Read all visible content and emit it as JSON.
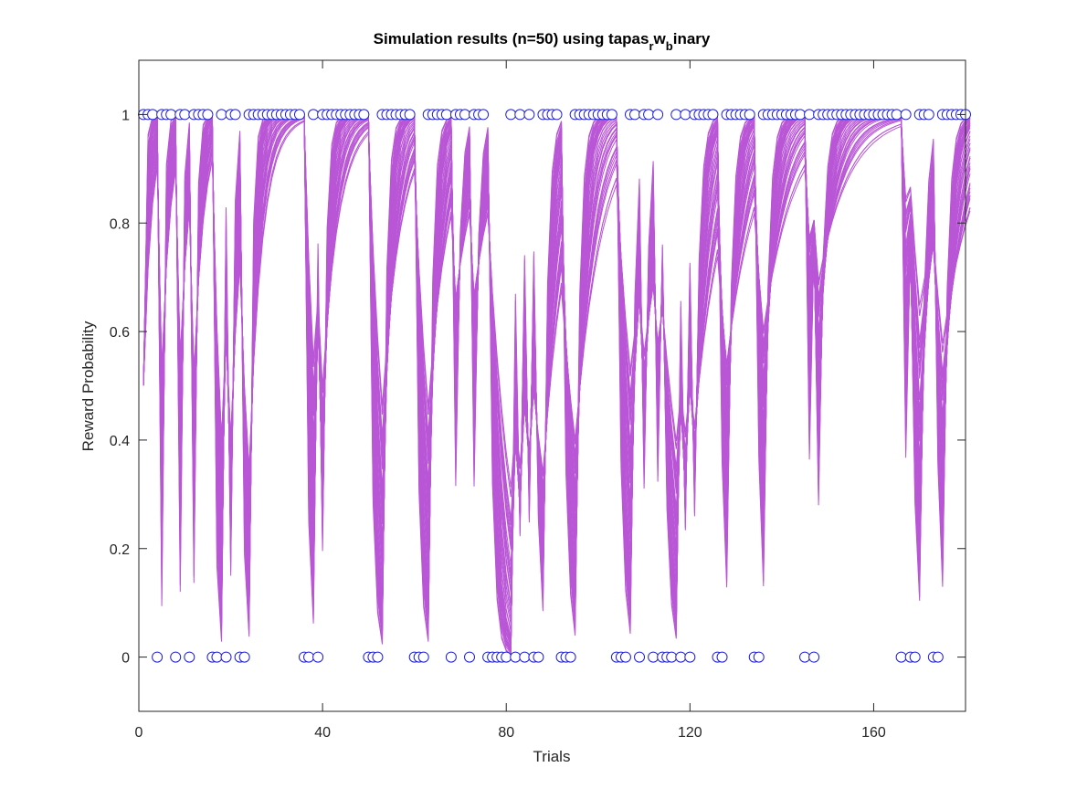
{
  "chart_data": {
    "type": "line",
    "title": {
      "main": "Simulation results (n=50) using tapas",
      "sub1": "r",
      "mid": "w",
      "sub2": "b",
      "end": "inary"
    },
    "xlabel": "Trials",
    "ylabel": "Reward Probability",
    "xlim": [
      0,
      180
    ],
    "ylim": [
      -0.1,
      1.1
    ],
    "xticks": [
      0,
      40,
      80,
      120,
      160
    ],
    "xtick_labels": [
      "0",
      "40",
      "80",
      "120",
      "160"
    ],
    "yticks": [
      0,
      0.2,
      0.4,
      0.6,
      0.8,
      1
    ],
    "ytick_labels": [
      "0",
      "0.2",
      "0.4",
      "0.6",
      "0.8",
      "1"
    ],
    "n_trajectories": 50,
    "trajectory_color": "#b956d6",
    "marker_color": "#1f1fd6",
    "outcomes_trials": [
      1,
      2,
      3,
      4,
      5,
      6,
      7,
      8,
      9,
      10,
      11,
      12,
      13,
      14,
      15,
      16,
      17,
      18,
      19,
      20,
      21,
      22,
      23,
      24,
      25,
      26,
      27,
      28,
      29,
      30,
      31,
      32,
      33,
      34,
      35,
      36,
      37,
      38,
      39,
      40,
      41,
      42,
      43,
      44,
      45,
      46,
      47,
      48,
      49,
      50,
      51,
      52,
      53,
      54,
      55,
      56,
      57,
      58,
      59,
      60,
      61,
      62,
      63,
      64,
      65,
      66,
      67,
      68,
      69,
      70,
      71,
      72,
      73,
      74,
      75,
      76,
      77,
      78,
      79,
      80,
      81,
      82,
      83,
      84,
      85,
      86,
      87,
      88,
      89,
      90,
      91,
      92,
      93,
      94,
      95,
      96,
      97,
      98,
      99,
      100,
      101,
      102,
      103,
      104,
      105,
      106,
      107,
      108,
      109,
      110,
      111,
      112,
      113,
      114,
      115,
      116,
      117,
      118,
      119,
      120,
      121,
      122,
      123,
      124,
      125,
      126,
      127,
      128,
      129,
      130,
      131,
      132,
      133,
      134,
      135,
      136,
      137,
      138,
      139,
      140,
      141,
      142,
      143,
      144,
      145,
      146,
      147,
      148,
      149,
      150,
      151,
      152,
      153,
      154,
      155,
      156,
      157,
      158,
      159,
      160,
      161,
      162,
      163,
      164,
      165,
      166,
      167,
      168,
      169,
      170,
      171,
      172,
      173,
      174,
      175,
      176,
      177,
      178,
      179,
      180
    ],
    "outcomes": [
      1,
      1,
      1,
      0,
      1,
      1,
      1,
      0,
      1,
      1,
      0,
      1,
      1,
      1,
      1,
      0,
      0,
      1,
      0,
      1,
      1,
      0,
      0,
      1,
      1,
      1,
      1,
      1,
      1,
      1,
      1,
      1,
      1,
      1,
      1,
      0,
      0,
      1,
      0,
      1,
      1,
      1,
      1,
      1,
      1,
      1,
      1,
      1,
      1,
      0,
      0,
      0,
      1,
      1,
      1,
      1,
      1,
      1,
      1,
      0,
      0,
      0,
      1,
      1,
      1,
      1,
      1,
      0,
      1,
      1,
      1,
      0,
      1,
      1,
      1,
      0,
      0,
      0,
      0,
      0,
      1,
      0,
      1,
      0,
      1,
      0,
      0,
      1,
      1,
      1,
      1,
      0,
      0,
      0,
      1,
      1,
      1,
      1,
      1,
      1,
      1,
      1,
      1,
      0,
      0,
      0,
      1,
      1,
      0,
      1,
      1,
      0,
      1,
      0,
      0,
      0,
      1,
      0,
      1,
      0,
      1,
      1,
      1,
      1,
      1,
      0,
      0,
      1,
      1,
      1,
      1,
      1,
      1,
      0,
      0,
      1,
      1,
      1,
      1,
      1,
      1,
      1,
      1,
      1,
      0,
      1,
      0,
      1,
      1,
      1,
      1,
      1,
      1,
      1,
      1,
      1,
      1,
      1,
      1,
      1,
      1,
      1,
      1,
      1,
      1,
      0,
      1,
      0,
      0,
      1,
      1,
      1,
      0,
      0,
      1,
      1,
      1,
      1,
      1,
      1
    ]
  }
}
